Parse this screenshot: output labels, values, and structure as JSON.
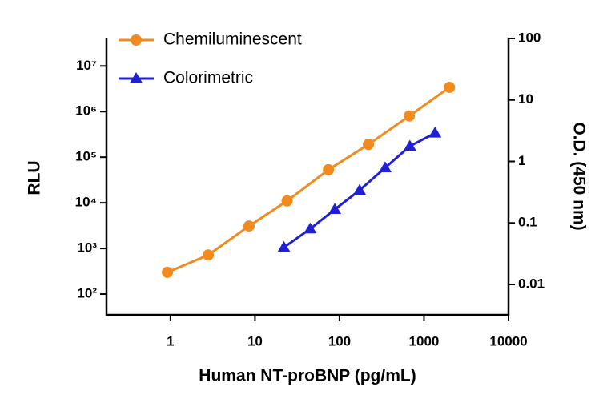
{
  "chart_data": {
    "type": "line",
    "xlabel": "Human NT-proBNP (pg/mL)",
    "ylabel": "RLU",
    "y2label": "O.D. (450 nm)",
    "xscale": "log",
    "yscale": "log",
    "y2scale": "log",
    "xlim": [
      0.175,
      10000
    ],
    "xticks": [
      1,
      10,
      100,
      1000,
      10000
    ],
    "ylim": [
      35,
      40000000
    ],
    "yticks": [
      {
        "value": 100,
        "label": "10²"
      },
      {
        "value": 1000,
        "label": "10³"
      },
      {
        "value": 10000,
        "label": "10⁴"
      },
      {
        "value": 100000,
        "label": "10⁵"
      },
      {
        "value": 1000000,
        "label": "10⁶"
      },
      {
        "value": 10000000,
        "label": "10⁷"
      }
    ],
    "y2lim": [
      0.0032,
      100
    ],
    "y2ticks": [
      0.01,
      0.1,
      1,
      10,
      100
    ],
    "legend": "top-left",
    "series": [
      {
        "name": "Chemiluminescent",
        "color": "#f28a1e",
        "marker": "circle",
        "x": [
          0.92,
          2.8,
          8.5,
          24,
          74,
          220,
          670,
          2000
        ],
        "values": [
          300,
          720,
          3100,
          11000,
          53000,
          190000,
          800000,
          3400000
        ]
      },
      {
        "name": "Colorimetric",
        "color": "#1f1fd8",
        "marker": "triangle",
        "axis": "y2",
        "x": [
          22,
          45,
          88,
          173,
          347,
          680,
          1350
        ],
        "values": [
          0.04,
          0.08,
          0.166,
          0.34,
          0.79,
          1.77,
          2.9
        ]
      }
    ]
  }
}
